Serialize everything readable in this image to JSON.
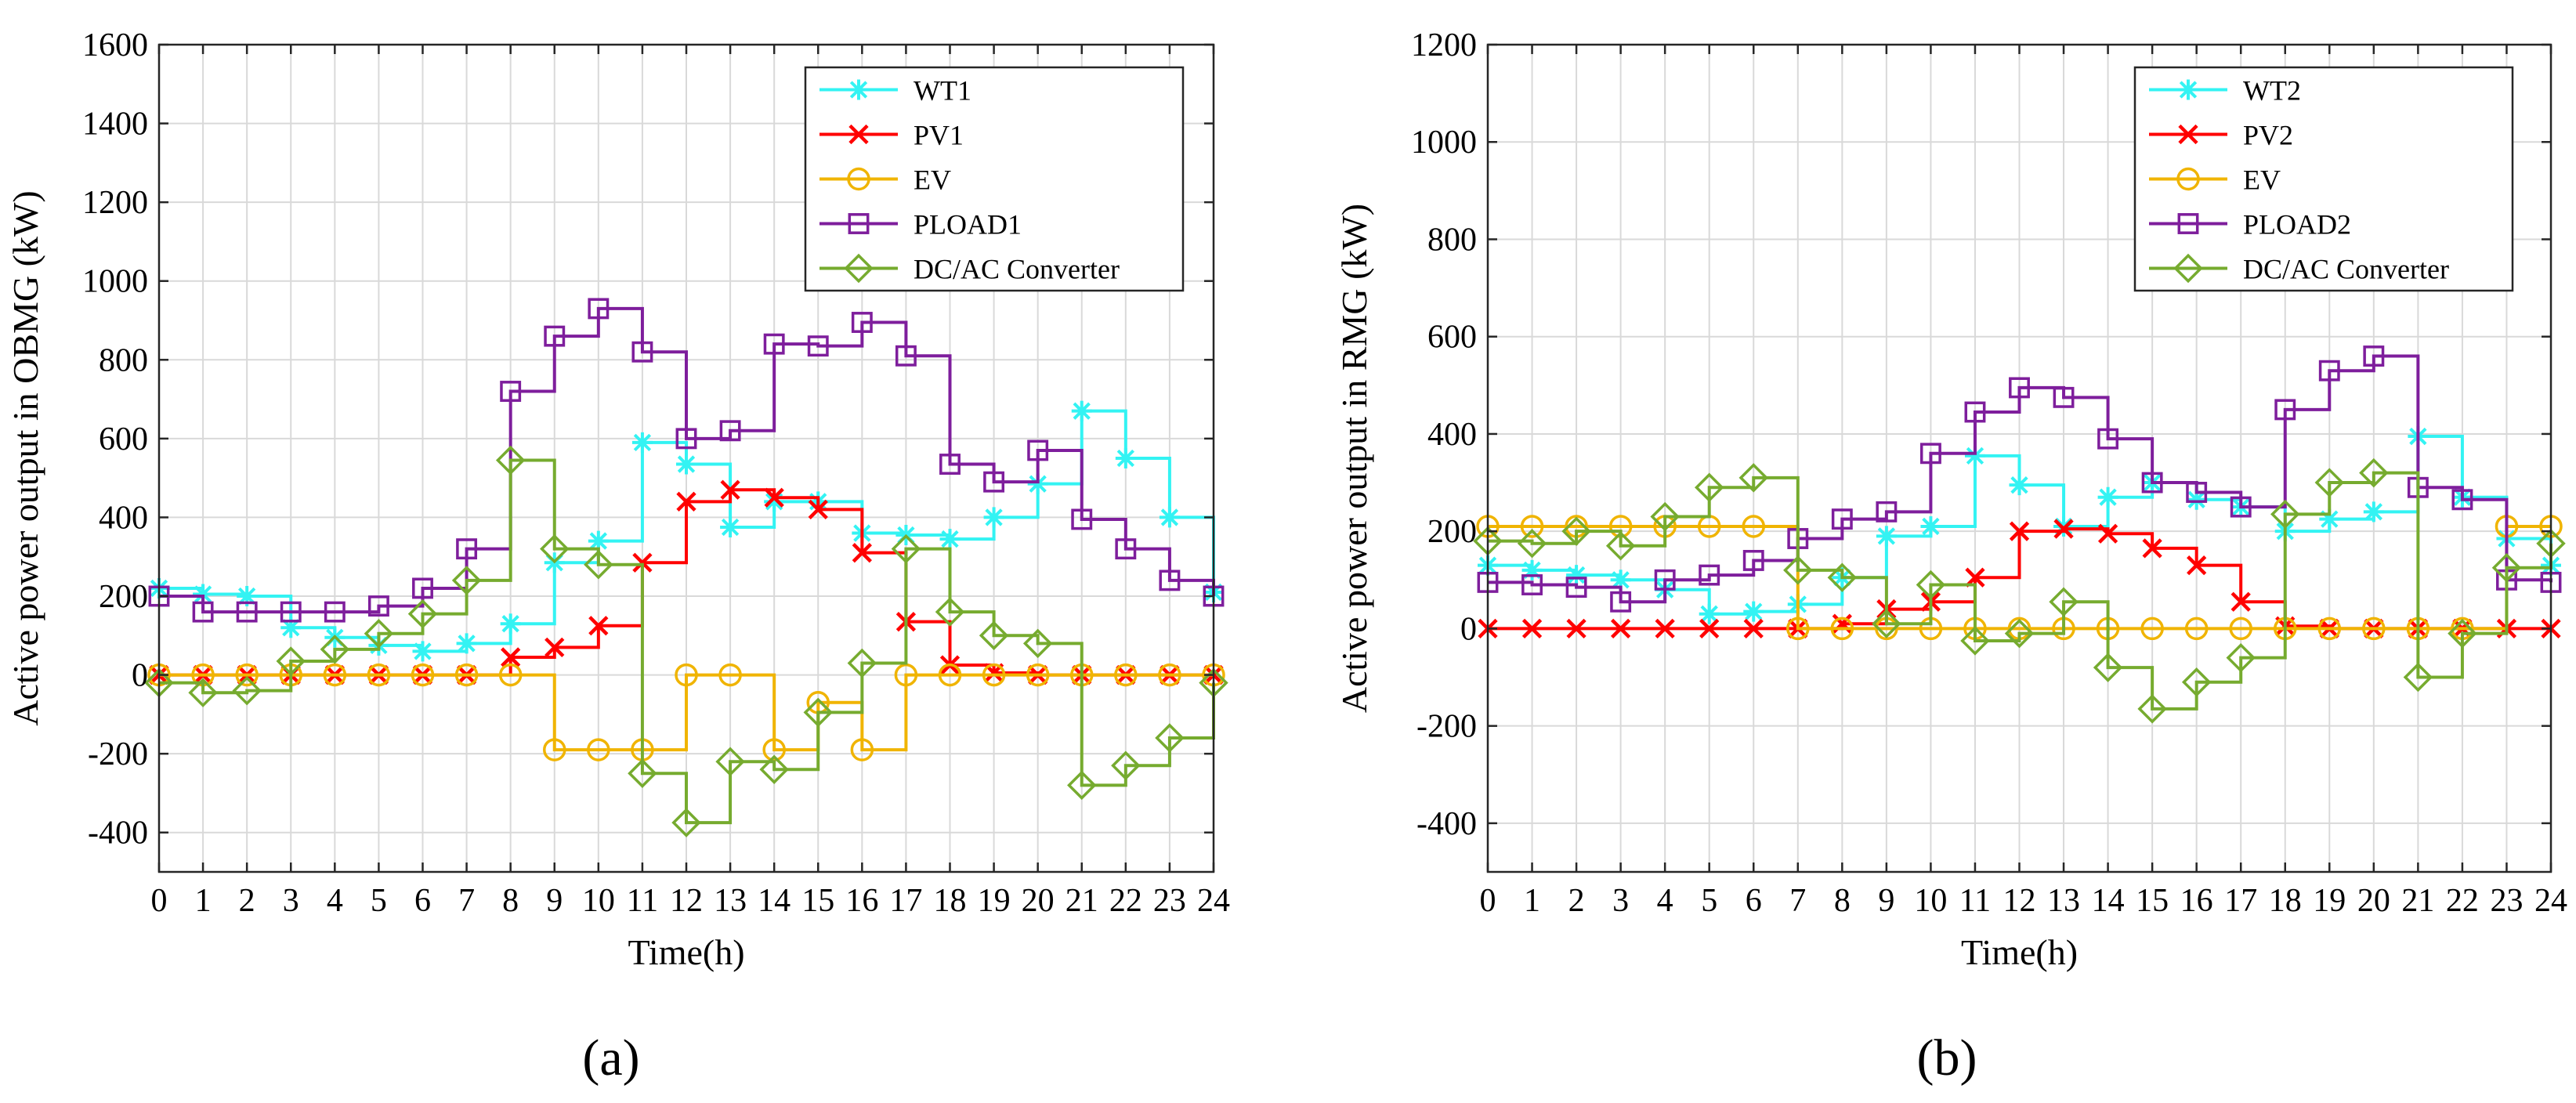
{
  "figure": {
    "panel_labels": [
      "(a)",
      "(b)"
    ]
  },
  "colors": {
    "WT": "#33f3f3",
    "PV": "#ff0000",
    "EV": "#f0b400",
    "PLOAD": "#7e1e9c",
    "DCAC": "#76ab2f"
  },
  "chart_data": [
    {
      "type": "line",
      "step": true,
      "panel": "(a)",
      "xlabel": "Time(h)",
      "ylabel": "Active power output in OBMG (kW)",
      "xlim": [
        0,
        24
      ],
      "ylim": [
        -500,
        1600
      ],
      "xticks": [
        "0",
        "1",
        "2",
        "3",
        "4",
        "5",
        "6",
        "7",
        "8",
        "9",
        "10",
        "11",
        "12",
        "13",
        "14",
        "15",
        "16",
        "17",
        "18",
        "19",
        "20",
        "21",
        "22",
        "23",
        "24"
      ],
      "yticks": [
        "-400",
        "-200",
        "0",
        "200",
        "400",
        "600",
        "800",
        "1000",
        "1200",
        "1400",
        "1600"
      ],
      "grid": true,
      "legend_position": "top-right",
      "series": [
        {
          "name": "WT1",
          "marker": "asterisk",
          "color_key": "WT",
          "values": [
            220,
            205,
            200,
            120,
            95,
            75,
            60,
            80,
            130,
            285,
            340,
            590,
            535,
            375,
            440,
            440,
            360,
            355,
            345,
            400,
            485,
            670,
            550,
            400,
            210
          ]
        },
        {
          "name": "PV1",
          "marker": "cross",
          "color_key": "PV",
          "values": [
            0,
            0,
            0,
            0,
            0,
            0,
            0,
            0,
            45,
            70,
            125,
            285,
            440,
            470,
            450,
            420,
            310,
            135,
            25,
            5,
            0,
            0,
            0,
            0,
            0
          ]
        },
        {
          "name": "EV",
          "marker": "circle",
          "color_key": "EV",
          "values": [
            0,
            0,
            0,
            0,
            0,
            0,
            0,
            0,
            0,
            -190,
            -190,
            -190,
            0,
            0,
            -190,
            -70,
            -190,
            0,
            0,
            0,
            0,
            0,
            0,
            0,
            0
          ]
        },
        {
          "name": "PLOAD1",
          "marker": "square",
          "color_key": "PLOAD",
          "values": [
            200,
            160,
            160,
            160,
            160,
            175,
            220,
            320,
            720,
            860,
            930,
            820,
            600,
            620,
            840,
            835,
            895,
            810,
            535,
            490,
            570,
            395,
            320,
            240,
            200
          ]
        },
        {
          "name": "DC/AC Converter",
          "marker": "diamond",
          "color_key": "DCAC",
          "values": [
            -20,
            -45,
            -40,
            35,
            65,
            105,
            155,
            240,
            545,
            320,
            280,
            -250,
            -375,
            -220,
            -240,
            -95,
            30,
            320,
            160,
            100,
            80,
            -280,
            -230,
            -160,
            -20
          ]
        }
      ]
    },
    {
      "type": "line",
      "step": true,
      "panel": "(b)",
      "xlabel": "Time(h)",
      "ylabel": "Active power output in RMG (kW)",
      "xlim": [
        0,
        24
      ],
      "ylim": [
        -500,
        1200
      ],
      "xticks": [
        "0",
        "1",
        "2",
        "3",
        "4",
        "5",
        "6",
        "7",
        "8",
        "9",
        "10",
        "11",
        "12",
        "13",
        "14",
        "15",
        "16",
        "17",
        "18",
        "19",
        "20",
        "21",
        "22",
        "23",
        "24"
      ],
      "yticks": [
        "-400",
        "-200",
        "0",
        "200",
        "400",
        "600",
        "800",
        "1000",
        "1200"
      ],
      "grid": true,
      "legend_position": "top-right",
      "series": [
        {
          "name": "WT2",
          "marker": "asterisk",
          "color_key": "WT",
          "values": [
            130,
            120,
            110,
            100,
            80,
            30,
            35,
            50,
            105,
            190,
            210,
            355,
            295,
            210,
            270,
            300,
            265,
            250,
            200,
            225,
            240,
            395,
            270,
            185,
            130
          ]
        },
        {
          "name": "PV2",
          "marker": "cross",
          "color_key": "PV",
          "values": [
            0,
            0,
            0,
            0,
            0,
            0,
            0,
            0,
            10,
            40,
            55,
            105,
            200,
            205,
            195,
            165,
            130,
            55,
            5,
            0,
            0,
            0,
            0,
            0,
            0
          ]
        },
        {
          "name": "EV",
          "marker": "circle",
          "color_key": "EV",
          "values": [
            210,
            210,
            210,
            210,
            210,
            210,
            210,
            0,
            0,
            0,
            0,
            0,
            0,
            0,
            0,
            0,
            0,
            0,
            0,
            0,
            0,
            0,
            0,
            210,
            210
          ]
        },
        {
          "name": "PLOAD2",
          "marker": "square",
          "color_key": "PLOAD",
          "values": [
            95,
            90,
            85,
            55,
            100,
            110,
            140,
            185,
            225,
            240,
            360,
            445,
            495,
            475,
            390,
            300,
            280,
            250,
            450,
            530,
            560,
            290,
            265,
            100,
            95
          ]
        },
        {
          "name": "DC/AC Converter",
          "marker": "diamond",
          "color_key": "DCAC",
          "values": [
            180,
            175,
            200,
            170,
            230,
            290,
            310,
            120,
            105,
            10,
            90,
            -25,
            -10,
            55,
            -80,
            -165,
            -110,
            -60,
            235,
            300,
            320,
            -100,
            -10,
            125,
            175
          ]
        }
      ]
    }
  ]
}
